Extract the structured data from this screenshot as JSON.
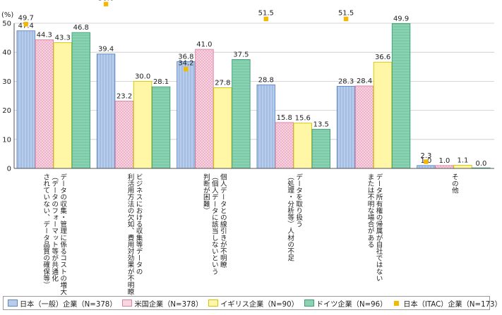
{
  "chart_data": {
    "type": "bar",
    "ylabel": "(%)",
    "ylim": [
      0,
      50
    ],
    "yticks": [
      0,
      10,
      20,
      30,
      40,
      50
    ],
    "categories": [
      [
        "データの収集・管理に係るコストの増大",
        "（データのフォーマット等が共通化",
        "されていない、データ品質の確保等）"
      ],
      [
        "ビジネスにおける収集等データの",
        "利活用方法の欠如、費用対効果が不明瞭"
      ],
      [
        "個人データとの線引きが不明瞭",
        "（個人データに該当しないという",
        "判断が困難）"
      ],
      [
        "データを取り扱う",
        "（処理・分析等）人材の不足"
      ],
      [
        "データ所有権の帰属が自社ではない",
        "または不明な場合がある"
      ],
      [
        "その他"
      ]
    ],
    "series": [
      {
        "name": "日本（一般）企業（N=378）",
        "values": [
          47.4,
          39.4,
          36.8,
          28.8,
          28.3,
          1.0
        ]
      },
      {
        "name": "米国企業（N=378）",
        "values": [
          44.3,
          23.2,
          41.0,
          15.8,
          28.4,
          1.0
        ]
      },
      {
        "name": "イギリス企業（N=90）",
        "values": [
          43.3,
          30.0,
          27.8,
          15.6,
          36.6,
          1.1
        ]
      },
      {
        "name": "ドイツ企業（N=96）",
        "values": [
          46.8,
          28.1,
          37.5,
          13.5,
          49.9,
          0.0
        ]
      }
    ],
    "markers": {
      "name": "日本（ITAC）企業（N=173）",
      "values": [
        49.7,
        56.6,
        34.2,
        51.5,
        51.5,
        2.3
      ]
    }
  },
  "colors": {
    "jp_fill": "#b8cdeb",
    "jp_stroke": "#5b87c5",
    "us_fill": "#f7d5e2",
    "us_stroke": "#e07fa2",
    "uk_fill": "#fff6a6",
    "uk_stroke": "#d6c200",
    "de_fill": "#8ad3b2",
    "de_stroke": "#3c9e74",
    "itac": "#f5b800"
  }
}
